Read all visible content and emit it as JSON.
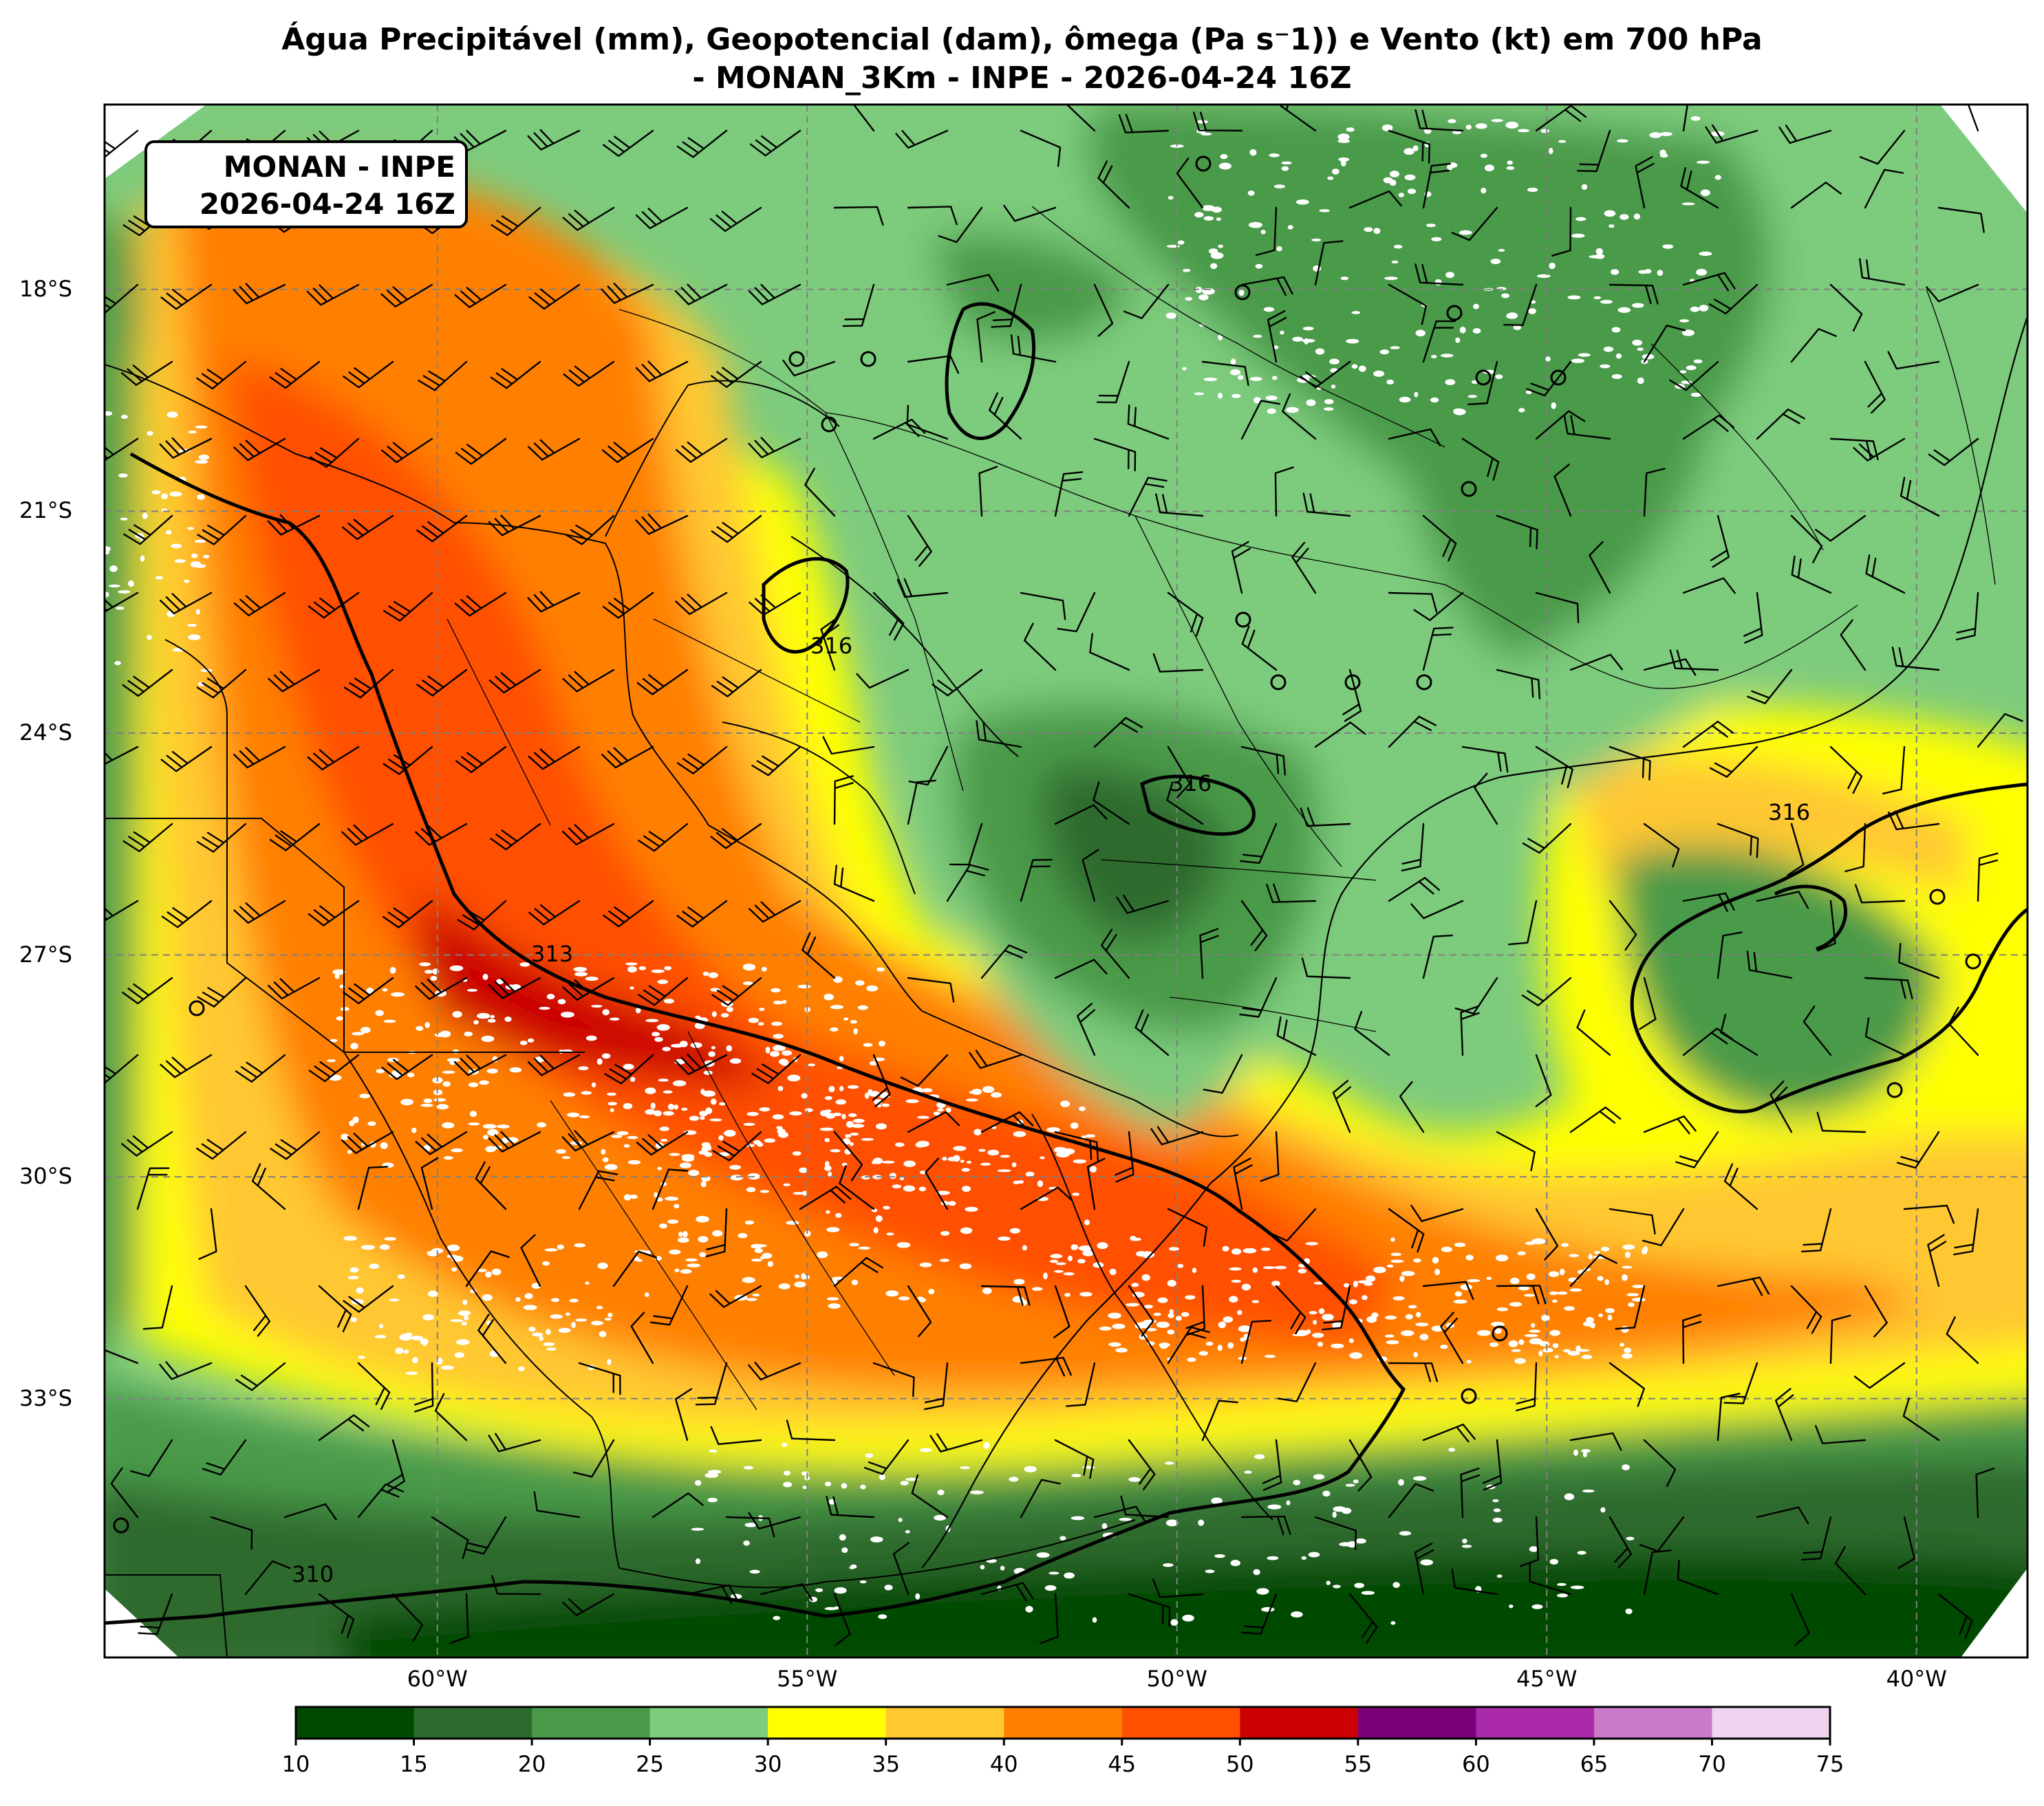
{
  "title": {
    "line1": "Água Precipitável (mm), Geopotencial (dam), ômega (Pa s⁻1)) e Vento (kt) em 700 hPa",
    "line2": "- MONAN_3Km - INPE - 2026-04-24 16Z"
  },
  "infobox": {
    "line1": "MONAN - INPE",
    "line2": "2026-04-24 16Z"
  },
  "map": {
    "lon_range": [
      -64.5,
      -38.5
    ],
    "lat_range": [
      -36.5,
      -15.5
    ],
    "lat_ticks": [
      {
        "value": -18,
        "label": "18°S"
      },
      {
        "value": -21,
        "label": "21°S"
      },
      {
        "value": -24,
        "label": "24°S"
      },
      {
        "value": -27,
        "label": "27°S"
      },
      {
        "value": -30,
        "label": "30°S"
      },
      {
        "value": -33,
        "label": "33°S"
      }
    ],
    "lon_ticks": [
      {
        "value": -60,
        "label": "60°W"
      },
      {
        "value": -55,
        "label": "55°W"
      },
      {
        "value": -50,
        "label": "50°W"
      },
      {
        "value": -45,
        "label": "45°W"
      },
      {
        "value": -40,
        "label": "40°W"
      }
    ],
    "geopotential_contour_labels": [
      "316",
      "316",
      "316",
      "313",
      "310"
    ],
    "gridlines": "dashed grey"
  },
  "colorbar": {
    "ticks": [
      "10",
      "15",
      "20",
      "25",
      "30",
      "35",
      "40",
      "45",
      "50",
      "55",
      "60",
      "65",
      "70",
      "75"
    ],
    "colors": [
      "#004a00",
      "#2d6a2d",
      "#4a9a4a",
      "#7dcb7d",
      "#ffff00",
      "#ffc830",
      "#ff8000",
      "#ff5000",
      "#cc0000",
      "#7a007a",
      "#aa2aaa",
      "#c97ac9",
      "#eed4ee"
    ]
  },
  "palette": {
    "dark_green": "#004a00",
    "mid_dark_green": "#2d6a2d",
    "green": "#4a9a4a",
    "light_green": "#7dcb7d",
    "yellow": "#ffff00",
    "light_orange": "#ffc830",
    "orange": "#ff8000",
    "red_orange": "#ff5000",
    "red": "#cc0000"
  }
}
